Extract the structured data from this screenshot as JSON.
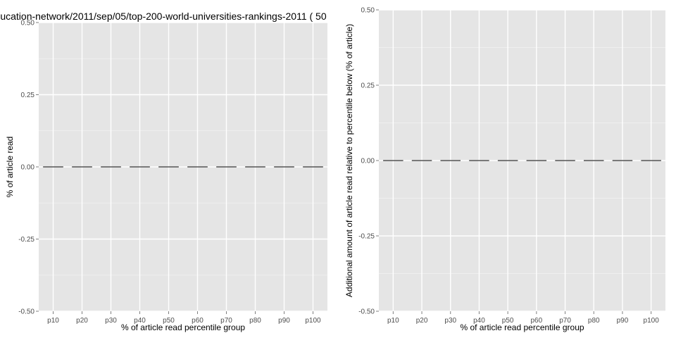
{
  "chart_data": [
    {
      "type": "bar",
      "title": "ucation-network/2011/sep/05/top-200-world-universities-rankings-2011 ( 50",
      "xlabel": "% of article read percentile group",
      "ylabel": "% of article read",
      "categories": [
        "p10",
        "p20",
        "p30",
        "p40",
        "p50",
        "p60",
        "p70",
        "p80",
        "p90",
        "p100"
      ],
      "values": [
        0,
        0,
        0,
        0,
        0,
        0,
        0,
        0,
        0,
        0
      ],
      "ylim": [
        -0.5,
        0.5
      ],
      "yticks": [
        -0.5,
        -0.25,
        0.0,
        0.25,
        0.5
      ],
      "ytick_labels": [
        "-0.50",
        "-0.25",
        "0.00",
        "0.25",
        "0.50"
      ],
      "grid": true,
      "background": "#e5e5e5",
      "grid_color": "#ffffff",
      "bar_color": "#000000"
    },
    {
      "type": "bar",
      "title": "",
      "xlabel": "% of article read percentile group",
      "ylabel": "Additional amount of article read relative to percentile below (% of article)",
      "categories": [
        "p10",
        "p20",
        "p30",
        "p40",
        "p50",
        "p60",
        "p70",
        "p80",
        "p90",
        "p100"
      ],
      "values": [
        0,
        0,
        0,
        0,
        0,
        0,
        0,
        0,
        0,
        0
      ],
      "ylim": [
        -0.5,
        0.5
      ],
      "yticks": [
        -0.5,
        -0.25,
        0.0,
        0.25,
        0.5
      ],
      "ytick_labels": [
        "-0.50",
        "-0.25",
        "0.00",
        "0.25",
        "0.50"
      ],
      "grid": true,
      "background": "#e5e5e5",
      "grid_color": "#ffffff",
      "bar_color": "#000000"
    }
  ]
}
